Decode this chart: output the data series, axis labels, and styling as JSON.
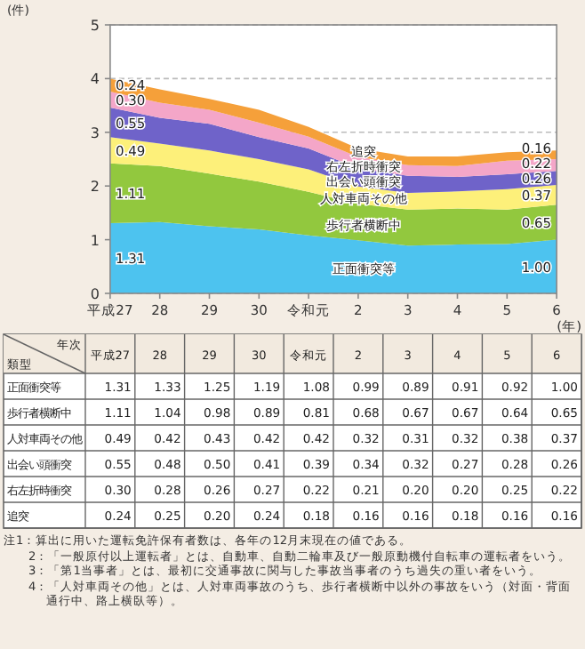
{
  "chart_data": {
    "type": "area",
    "stacked": true,
    "ylabel": "(件)",
    "xlabel": "(年)",
    "categories": [
      "平成27",
      "28",
      "29",
      "30",
      "令和元",
      "2",
      "3",
      "4",
      "5",
      "6"
    ],
    "ylim": [
      0,
      5
    ],
    "yticks": [
      0,
      1,
      2,
      3,
      4,
      5
    ],
    "grid": "y",
    "series": [
      {
        "name": "正面衝突等",
        "color": "#4dc3ef",
        "values": [
          1.31,
          1.33,
          1.25,
          1.19,
          1.08,
          0.99,
          0.89,
          0.91,
          0.92,
          1.0
        ],
        "value_labels": [
          "1.31",
          "1.33",
          "1.25",
          "1.19",
          "1.08",
          "0.99",
          "0.89",
          "0.91",
          "0.92",
          "1.00"
        ]
      },
      {
        "name": "歩行者横断中",
        "color": "#92c83e",
        "values": [
          1.11,
          1.04,
          0.98,
          0.89,
          0.81,
          0.68,
          0.67,
          0.67,
          0.64,
          0.65
        ],
        "value_labels": [
          "1.11",
          "1.04",
          "0.98",
          "0.89",
          "0.81",
          "0.68",
          "0.67",
          "0.67",
          "0.64",
          "0.65"
        ]
      },
      {
        "name": "人対車両その他",
        "color": "#fdf07a",
        "values": [
          0.49,
          0.42,
          0.43,
          0.42,
          0.42,
          0.32,
          0.31,
          0.32,
          0.38,
          0.37
        ],
        "value_labels": [
          "0.49",
          "0.42",
          "0.43",
          "0.42",
          "0.42",
          "0.32",
          "0.31",
          "0.32",
          "0.38",
          "0.37"
        ]
      },
      {
        "name": "出会い頭衝突",
        "color": "#6f63c9",
        "values": [
          0.55,
          0.48,
          0.5,
          0.41,
          0.39,
          0.34,
          0.32,
          0.27,
          0.28,
          0.26
        ],
        "value_labels": [
          "0.55",
          "0.48",
          "0.50",
          "0.41",
          "0.39",
          "0.34",
          "0.32",
          "0.27",
          "0.28",
          "0.26"
        ]
      },
      {
        "name": "右左折時衝突",
        "color": "#f4a6c8",
        "values": [
          0.3,
          0.28,
          0.26,
          0.27,
          0.22,
          0.21,
          0.2,
          0.2,
          0.25,
          0.22
        ],
        "value_labels": [
          "0.30",
          "0.28",
          "0.26",
          "0.27",
          "0.22",
          "0.21",
          "0.20",
          "0.20",
          "0.25",
          "0.22"
        ]
      },
      {
        "name": "追突",
        "color": "#f5a03a",
        "values": [
          0.24,
          0.25,
          0.2,
          0.24,
          0.18,
          0.16,
          0.16,
          0.18,
          0.16,
          0.16
        ],
        "value_labels": [
          "0.24",
          "0.25",
          "0.20",
          "0.24",
          "0.18",
          "0.16",
          "0.16",
          "0.18",
          "0.16",
          "0.16"
        ]
      }
    ],
    "annotations": [
      "年次",
      "類型",
      "注1：算出に用いた運転免許保有者数は、各年の12月末現在の値である。",
      "2：「一般原付以上運転者」とは、自動車、自動二輪車及び一般原動機付自転車の運転者をいう。",
      "3：「第1当事者」とは、最初に交通事故に関与した事故当事者のうち過失の重い者をいう。",
      "4：「人対車両その他」とは、人対車両事故のうち、歩行者横断中以外の事故をいう（対面・背面通行中、路上横臥等）。"
    ]
  }
}
